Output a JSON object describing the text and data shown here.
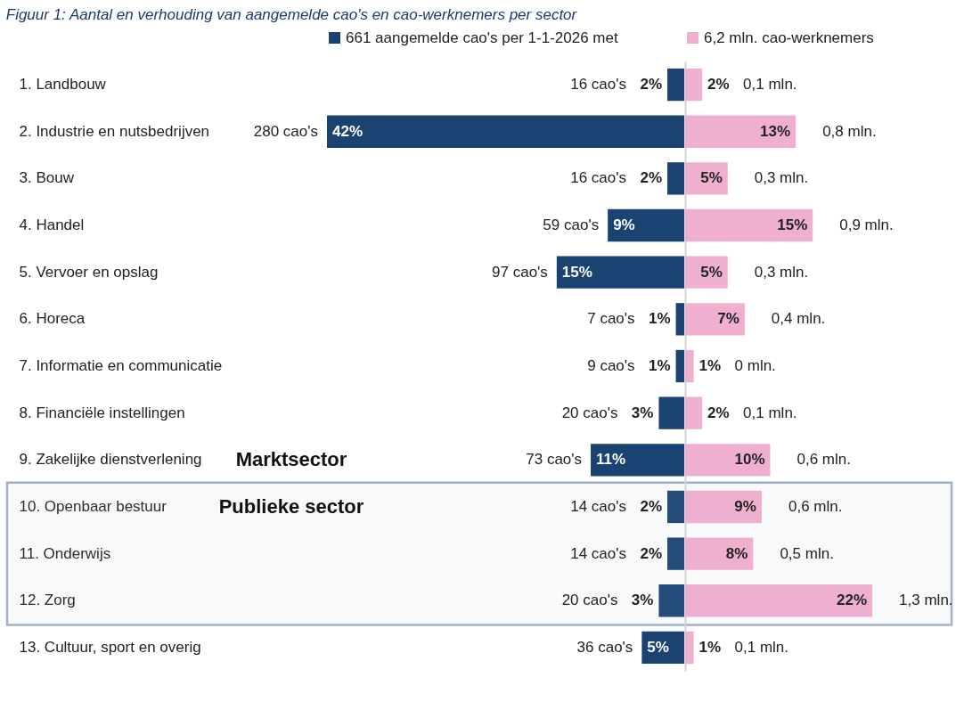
{
  "chart_data": [
    {
      "type": "bar",
      "orientation": "horizontal",
      "title": "Figuur 1: Aantal en verhouding van aangemelde cao's en cao-werknemers per sector",
      "categories": [
        "1. Landbouw",
        "2. Industrie en nutsbedrijven",
        "3. Bouw",
        "4. Handel",
        "5. Vervoer en opslag",
        "6. Horeca",
        "7. Informatie en communicatie",
        "8. Financiële instellingen",
        "9. Zakelijke dienstverlening",
        "10. Openbaar bestuur",
        "11. Onderwijs",
        "12. Zorg",
        "13. Cultuur, sport en overig"
      ],
      "series": [
        {
          "name": "661 aangemelde cao's per 1-1-2026 met",
          "color": "#1a4372",
          "values": [
            2,
            42,
            2,
            9,
            15,
            1,
            1,
            3,
            11,
            2,
            2,
            3,
            5
          ],
          "value_labels": [
            "2%",
            "42%",
            "2%",
            "9%",
            "15%",
            "1%",
            "1%",
            "3%",
            "11%",
            "2%",
            "2%",
            "3%",
            "5%"
          ]
        }
      ],
      "xlim": [
        42,
        0
      ],
      "annotations": [
        {
          "text": "16 cao's",
          "x": 2,
          "y": "1. Landbouw"
        },
        {
          "text": "280 cao's",
          "x": 42,
          "y": "2. Industrie en nutsbedrijven"
        },
        {
          "text": "16 cao's",
          "x": 2,
          "y": "3. Bouw"
        },
        {
          "text": "59 cao's",
          "x": 9,
          "y": "4. Handel"
        },
        {
          "text": "97 cao's",
          "x": 15,
          "y": "5. Vervoer en opslag"
        },
        {
          "text": "7 cao's",
          "x": 1,
          "y": "6. Horeca"
        },
        {
          "text": "9 cao's",
          "x": 1,
          "y": "7. Informatie en communicatie"
        },
        {
          "text": "20 cao's",
          "x": 3,
          "y": "8. Financiële instellingen"
        },
        {
          "text": "73 cao's",
          "x": 11,
          "y": "9. Zakelijke dienstverlening"
        },
        {
          "text": "14 cao's",
          "x": 2,
          "y": "10. Openbaar bestuur"
        },
        {
          "text": "14 cao's",
          "x": 2,
          "y": "11. Onderwijs"
        },
        {
          "text": "20 cao's",
          "x": 3,
          "y": "12. Zorg"
        },
        {
          "text": "36 cao's",
          "x": 5,
          "y": "13. Cultuur, sport en overig"
        },
        "Marktsector"
      ],
      "bands": [
        {
          "axis": "y",
          "from": "10. Openbaar bestuur",
          "to": "12. Zorg",
          "label": "Publieke sector",
          "color": "#a3b1c6"
        }
      ],
      "legend": "top"
    },
    {
      "type": "bar",
      "orientation": "horizontal",
      "categories": [
        "1. Landbouw",
        "2. Industrie en nutsbedrijven",
        "3. Bouw",
        "4. Handel",
        "5. Vervoer en opslag",
        "6. Horeca",
        "7. Informatie en communicatie",
        "8. Financiële instellingen",
        "9. Zakelijke dienstverlening",
        "10. Openbaar bestuur",
        "11. Onderwijs",
        "12. Zorg",
        "13. Cultuur, sport en overig"
      ],
      "series": [
        {
          "name": "6,2 mln. cao-werknemers",
          "color": "#efb0cf",
          "values": [
            2,
            13,
            5,
            15,
            5,
            7,
            1,
            2,
            10,
            9,
            8,
            22,
            1
          ],
          "value_labels": [
            "2%",
            "13%",
            "5%",
            "15%",
            "5%",
            "7%",
            "1%",
            "2%",
            "10%",
            "9%",
            "8%",
            "22%",
            "1%"
          ]
        }
      ],
      "xlim": [
        0,
        22
      ],
      "annotations": [
        {
          "text": "0,1 mln.",
          "x": 2,
          "y": "1. Landbouw"
        },
        {
          "text": "0,8 mln.",
          "x": 13,
          "y": "2. Industrie en nutsbedrijven"
        },
        {
          "text": "0,3 mln.",
          "x": 5,
          "y": "3. Bouw"
        },
        {
          "text": "0,9 mln.",
          "x": 15,
          "y": "4. Handel"
        },
        {
          "text": "0,3 mln.",
          "x": 5,
          "y": "5. Vervoer en opslag"
        },
        {
          "text": "0,4 mln.",
          "x": 7,
          "y": "6. Horeca"
        },
        {
          "text": "0 mln.",
          "x": 1,
          "y": "7. Informatie en communicatie"
        },
        {
          "text": "0,1 mln.",
          "x": 2,
          "y": "8. Financiële instellingen"
        },
        {
          "text": "0,6 mln.",
          "x": 10,
          "y": "9. Zakelijke dienstverlening"
        },
        {
          "text": "0,6 mln.",
          "x": 9,
          "y": "10. Openbaar bestuur"
        },
        {
          "text": "0,5 mln.",
          "x": 8,
          "y": "11. Onderwijs"
        },
        {
          "text": "1,3 mln.",
          "x": 22,
          "y": "12. Zorg"
        },
        {
          "text": "0,1 mln.",
          "x": 1,
          "y": "13. Cultuur, sport en overig"
        }
      ],
      "tick_labels": false,
      "legend": "top"
    }
  ]
}
